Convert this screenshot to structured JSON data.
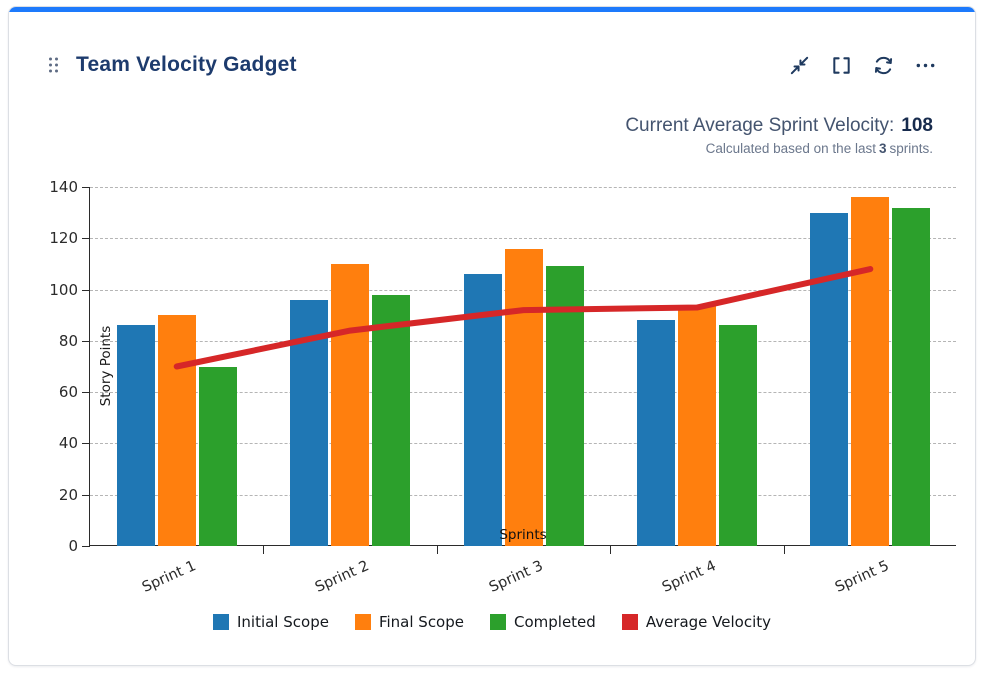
{
  "card": {
    "title": "Team Velocity Gadget",
    "accent_color": "#1D7AFC",
    "drag_handle_icon": "drag-handle"
  },
  "toolbar": {
    "icons": [
      "collapse-icon",
      "fullscreen-icon",
      "refresh-icon",
      "more-icon"
    ]
  },
  "summary": {
    "label": "Current Average Sprint Velocity:",
    "value": "108",
    "subtext_prefix": "Calculated based on the last",
    "subtext_bold": "3",
    "subtext_suffix": "sprints."
  },
  "chart_data": {
    "type": "bar",
    "title": "",
    "categories": [
      "Sprint 1",
      "Sprint 2",
      "Sprint 3",
      "Sprint 4",
      "Sprint 5"
    ],
    "series": [
      {
        "name": "Initial Scope",
        "color": "#1f77b4",
        "values": [
          86,
          96,
          106,
          88,
          130
        ]
      },
      {
        "name": "Final Scope",
        "color": "#ff7f0e",
        "values": [
          90,
          110,
          116,
          94,
          136
        ]
      },
      {
        "name": "Completed",
        "color": "#2ca02c",
        "values": [
          70,
          98,
          109,
          86,
          132
        ]
      }
    ],
    "line_series": {
      "name": "Average Velocity",
      "color": "#d62728",
      "values": [
        70,
        84,
        92,
        93,
        108
      ]
    },
    "xlabel": "Sprints",
    "ylabel": "Story Points",
    "ylim": [
      0,
      140
    ],
    "ytick_step": 20,
    "grid": "dashed-horizontal",
    "legend_position": "bottom"
  }
}
